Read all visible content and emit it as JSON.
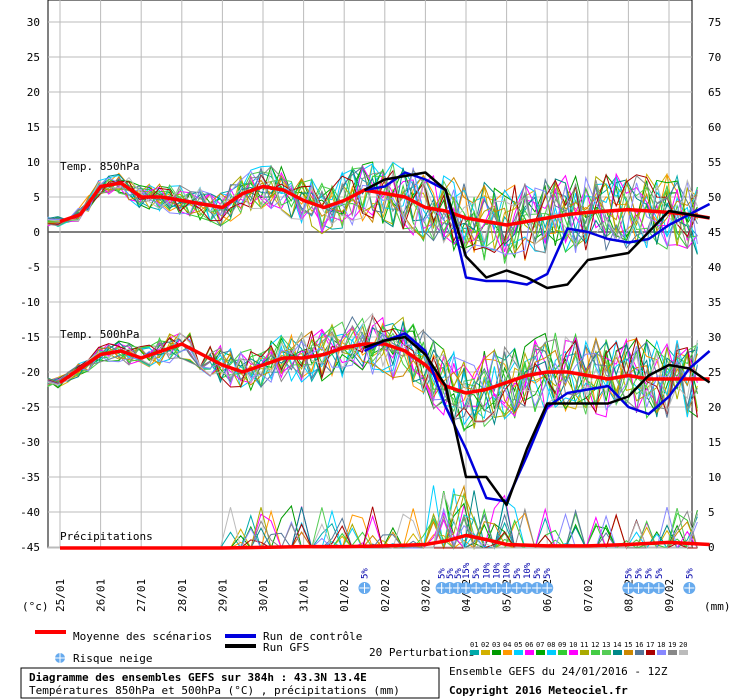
{
  "chart_data": {
    "type": "line",
    "title": "Diagramme des ensembles GEFS sur 384h : 43.3N 13.4E",
    "subtitle": "Températures 850hPa et 500hPa (°C) , précipitations (mm)",
    "ensemble_info": "Ensemble GEFS du 24/01/2016 - 12Z",
    "copyright": "Copyright 2016 Meteociel.fr",
    "y_left_unit": "(°c)",
    "y_right_unit": "(mm)",
    "y_left_ticks": [
      "30",
      "25",
      "20",
      "15",
      "10",
      "5",
      "0",
      "-5",
      "-10",
      "-15",
      "-20",
      "-25",
      "-30",
      "-35",
      "-40",
      "-45"
    ],
    "y_right_ticks": [
      "75",
      "70",
      "65",
      "60",
      "55",
      "50",
      "45",
      "40",
      "35",
      "30",
      "25",
      "20",
      "15",
      "10",
      "5",
      "0"
    ],
    "x_dates": [
      "25/01",
      "26/01",
      "27/01",
      "28/01",
      "29/01",
      "30/01",
      "31/01",
      "01/02",
      "02/02",
      "03/02",
      "04/02",
      "05/02",
      "06/02",
      "07/02",
      "08/02",
      "09/02"
    ],
    "panel_labels": {
      "t850": "Temp. 850hPa",
      "t500": "Temp. 500hPa",
      "precip": "Précipitations"
    },
    "snow_risk": {
      "label": "Risque neige",
      "markers": [
        {
          "x": 7.5,
          "pct": "5%"
        },
        {
          "x": 9.4,
          "pct": "5%"
        },
        {
          "x": 9.6,
          "pct": "5%"
        },
        {
          "x": 9.8,
          "pct": "5%"
        },
        {
          "x": 10.0,
          "pct": "15%"
        },
        {
          "x": 10.25,
          "pct": "5%"
        },
        {
          "x": 10.5,
          "pct": "10%"
        },
        {
          "x": 10.75,
          "pct": "10%"
        },
        {
          "x": 11.0,
          "pct": "10%"
        },
        {
          "x": 11.25,
          "pct": "5%"
        },
        {
          "x": 11.5,
          "pct": "10%"
        },
        {
          "x": 11.75,
          "pct": "5%"
        },
        {
          "x": 12.0,
          "pct": "5%"
        },
        {
          "x": 14.0,
          "pct": "5%"
        },
        {
          "x": 14.25,
          "pct": "5%"
        },
        {
          "x": 14.5,
          "pct": "5%"
        },
        {
          "x": 14.75,
          "pct": "5%"
        },
        {
          "x": 15.5,
          "pct": "5%"
        }
      ]
    },
    "legend": {
      "mean": "Moyenne des scénarios",
      "control": "Run de contrôle",
      "gfs": "Run GFS",
      "perturbations": "20 Perturbations",
      "pert_codes": [
        "01",
        "02",
        "03",
        "04",
        "05",
        "06",
        "07",
        "08",
        "09",
        "10",
        "11",
        "12",
        "13",
        "14",
        "15",
        "16",
        "17",
        "18",
        "19",
        "20"
      ],
      "pert_colors": [
        "#00aaaa",
        "#d2b000",
        "#009a00",
        "#ff9900",
        "#00d0ff",
        "#ff00ff",
        "#00aa00",
        "#00ccff",
        "#33cc33",
        "#ff00ff",
        "#aaaa00",
        "#44cc44",
        "#55cc55",
        "#008888",
        "#cc8800",
        "#557799",
        "#aa0000",
        "#8888ff",
        "#888888",
        "#bbbbbb"
      ],
      "colors": {
        "mean": "#ff0000",
        "control": "#0000dd",
        "gfs": "#000000"
      }
    },
    "series": [
      {
        "name": "t850_mean",
        "x": [
          0,
          0.5,
          1,
          1.5,
          2,
          2.5,
          3,
          3.5,
          4,
          4.5,
          5,
          5.5,
          6,
          6.5,
          7,
          7.5,
          8,
          8.5,
          9,
          9.5,
          10,
          10.5,
          11,
          11.5,
          12,
          12.5,
          13,
          13.5,
          14,
          14.5,
          15,
          15.5,
          16
        ],
        "values": [
          1.5,
          2.5,
          6.5,
          7.0,
          5.0,
          5.0,
          4.5,
          4.0,
          3.5,
          5.5,
          6.5,
          6.0,
          4.5,
          3.5,
          4.5,
          6.0,
          5.5,
          5.0,
          3.5,
          3.0,
          2.0,
          1.5,
          1.0,
          1.5,
          2.0,
          2.5,
          2.8,
          3.0,
          3.2,
          3.0,
          2.8,
          2.5,
          2.0
        ]
      },
      {
        "name": "t850_control",
        "x": [
          7.5,
          8,
          8.5,
          9,
          9.5,
          10,
          10.5,
          11,
          11.5,
          12,
          12.5,
          13,
          13.5,
          14,
          14.5,
          15,
          15.5,
          16
        ],
        "values": [
          6.0,
          6.5,
          8.5,
          7.5,
          6.0,
          -6.5,
          -7.0,
          -7.0,
          -7.5,
          -6.0,
          0.5,
          0.0,
          -1.0,
          -1.5,
          -1.0,
          1.0,
          2.5,
          4.0
        ]
      },
      {
        "name": "t850_gfs",
        "x": [
          7.5,
          8,
          8.5,
          9,
          9.5,
          10,
          10.5,
          11,
          11.5,
          12,
          12.5,
          13,
          13.5,
          14,
          14.5,
          15,
          15.5,
          16
        ],
        "values": [
          6.0,
          7.5,
          8.0,
          8.5,
          6.0,
          -3.5,
          -6.5,
          -5.5,
          -6.5,
          -8.0,
          -7.5,
          -4.0,
          -3.5,
          -3.0,
          0.0,
          3.0,
          2.5,
          2.0
        ]
      },
      {
        "name": "t500_mean",
        "x": [
          0,
          0.5,
          1,
          1.5,
          2,
          2.5,
          3,
          3.5,
          4,
          4.5,
          5,
          5.5,
          6,
          6.5,
          7,
          7.5,
          8,
          8.5,
          9,
          9.5,
          10,
          10.5,
          11,
          11.5,
          12,
          12.5,
          13,
          13.5,
          14,
          14.5,
          15,
          15.5,
          16
        ],
        "values": [
          -21.5,
          -19.5,
          -17.5,
          -17.0,
          -18.0,
          -17.0,
          -16.0,
          -17.5,
          -19.0,
          -20.0,
          -19.0,
          -18.0,
          -18.0,
          -17.5,
          -16.5,
          -16.0,
          -16.0,
          -17.0,
          -19.0,
          -22.0,
          -23.0,
          -22.5,
          -21.5,
          -20.5,
          -20.0,
          -20.0,
          -20.5,
          -21.0,
          -20.5,
          -21.0,
          -21.0,
          -21.0,
          -21.0
        ]
      },
      {
        "name": "t500_control",
        "x": [
          7.5,
          8,
          8.5,
          9,
          9.5,
          10,
          10.5,
          11,
          11.5,
          12,
          12.5,
          13,
          13.5,
          14,
          14.5,
          15,
          15.5,
          16
        ],
        "values": [
          -17.0,
          -15.5,
          -14.5,
          -17.0,
          -25.0,
          -31.0,
          -38.0,
          -38.5,
          -32.0,
          -25.0,
          -23.0,
          -22.5,
          -22.0,
          -25.0,
          -26.0,
          -23.5,
          -19.5,
          -17.0
        ]
      },
      {
        "name": "t500_gfs",
        "x": [
          7.5,
          8,
          8.5,
          9,
          9.5,
          10,
          10.5,
          11,
          11.5,
          12,
          12.5,
          13,
          13.5,
          14,
          14.5,
          15,
          15.5,
          16
        ],
        "values": [
          -16.5,
          -15.5,
          -15.0,
          -17.5,
          -22.0,
          -35.0,
          -35.0,
          -39.0,
          -31.0,
          -24.5,
          -24.5,
          -24.5,
          -24.5,
          -23.5,
          -20.5,
          -19.0,
          -19.5,
          -21.5
        ]
      },
      {
        "name": "precip_mean",
        "x": [
          0,
          2,
          4,
          6,
          7,
          8,
          9,
          9.5,
          10,
          10.5,
          11,
          12,
          13,
          14,
          15,
          16
        ],
        "values": [
          0,
          0,
          0,
          0.2,
          0.2,
          0.3,
          0.5,
          1.0,
          1.8,
          1.2,
          0.5,
          0.3,
          0.3,
          0.5,
          0.8,
          0.5
        ]
      }
    ],
    "x_range_days": [
      0,
      16
    ],
    "y_range_left": [
      -45,
      30
    ],
    "y_range_right": [
      0,
      75
    ]
  }
}
